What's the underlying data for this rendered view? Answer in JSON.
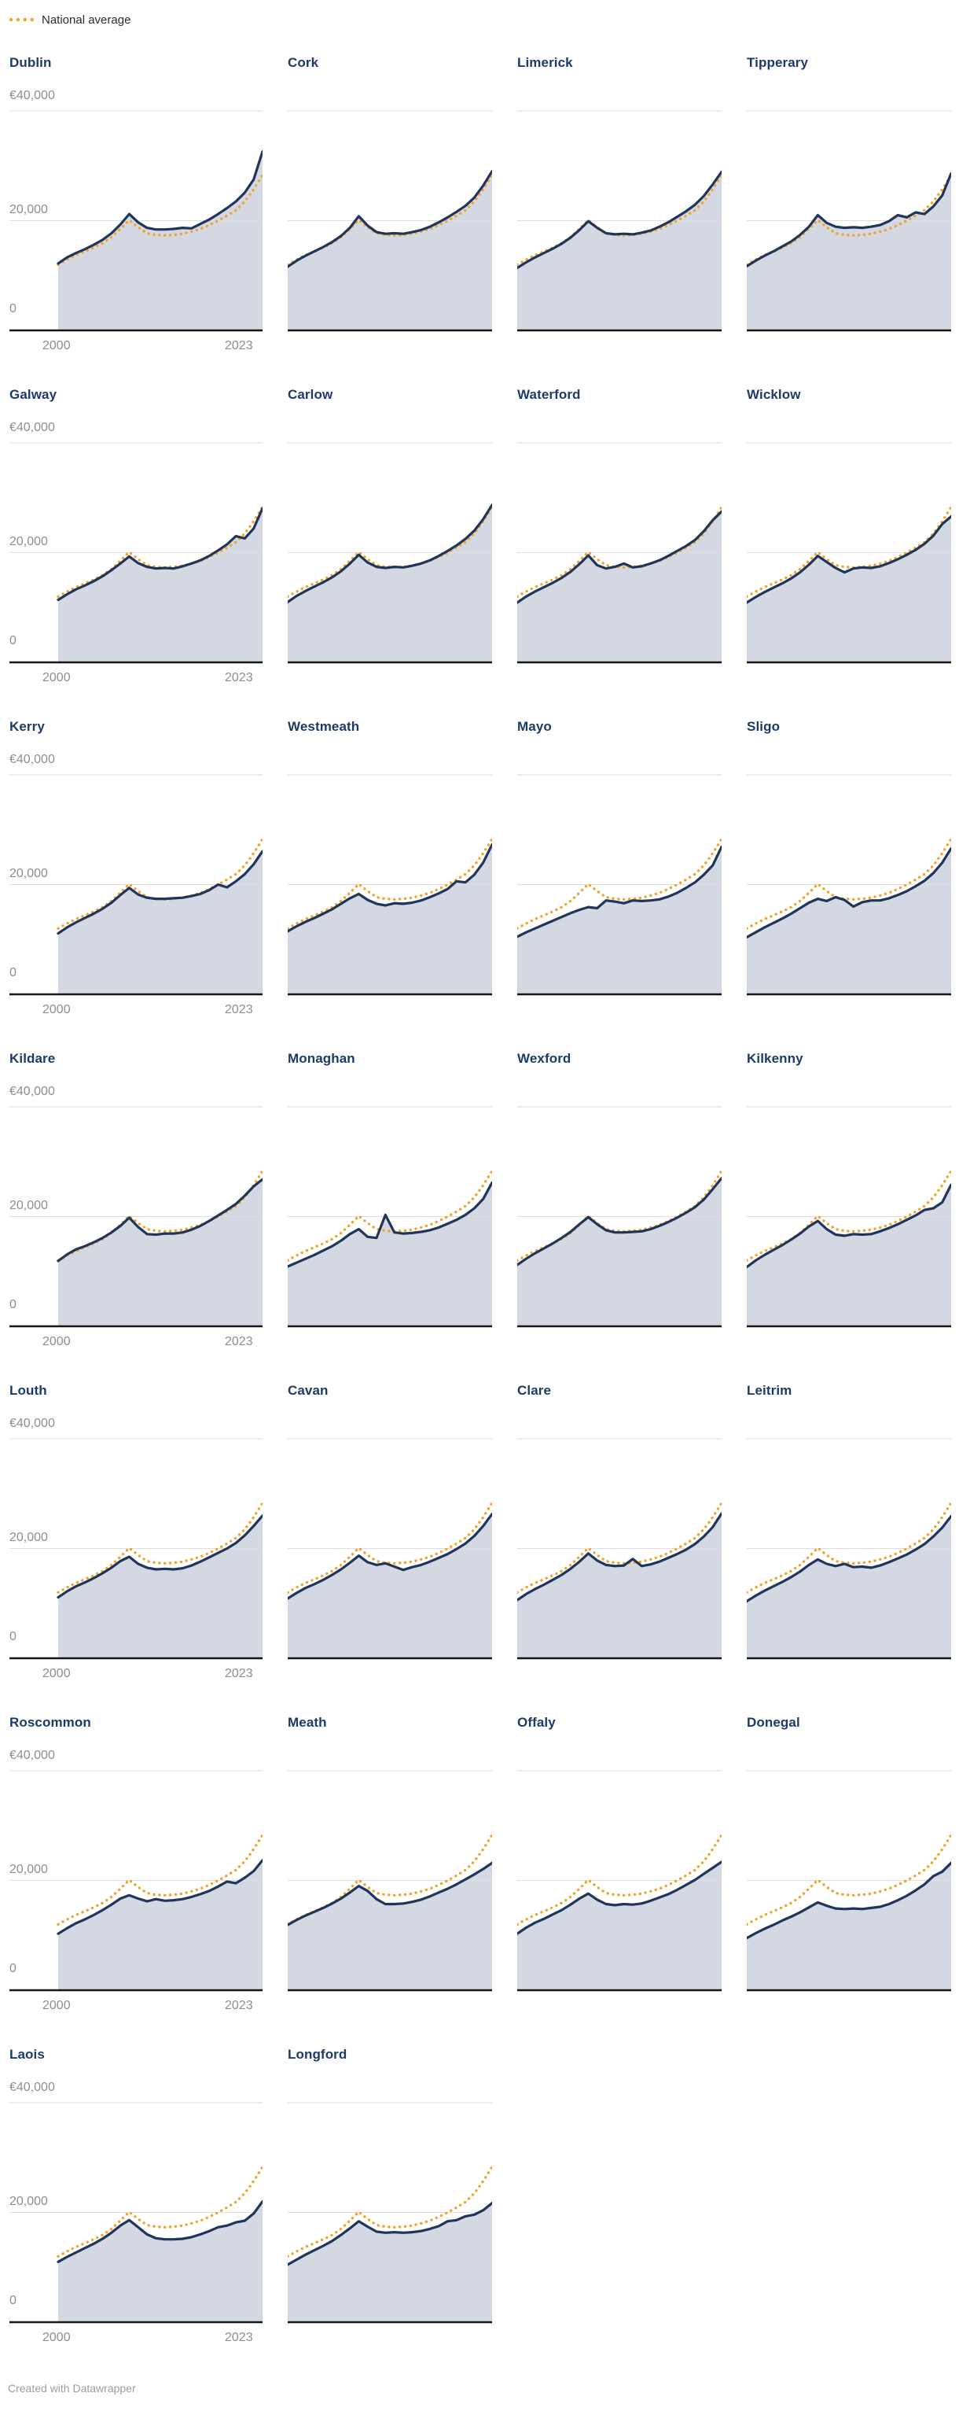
{
  "legend": {
    "label": "National average"
  },
  "axis": {
    "y_top_label": "€40,000",
    "y_mid_label": "20,000",
    "y_zero_label": "0",
    "x_first_label": "2000",
    "x_last_label": "2023"
  },
  "footer": {
    "credit": "Created with Datawrapper"
  },
  "colors": {
    "county_line": "#1f3559",
    "national_average_line": "#efa42b",
    "area_fill": "#d4d8e2",
    "gridline": "#dedede",
    "baseline": "#161616",
    "title_text": "#1d3a68",
    "axis_text": "#8e8e8e",
    "legend_text": "#2b2b2b",
    "credit_text": "#9e9e9e"
  },
  "chart_data": {
    "type": "area",
    "title": "",
    "ylabel": "€",
    "ylim": [
      0,
      40000
    ],
    "y_gridlines": [
      0,
      20000,
      40000
    ],
    "x": [
      2000,
      2001,
      2002,
      2003,
      2004,
      2005,
      2006,
      2007,
      2008,
      2009,
      2010,
      2011,
      2012,
      2013,
      2014,
      2015,
      2016,
      2017,
      2018,
      2019,
      2020,
      2021,
      2022,
      2023
    ],
    "legend_position": "top-left",
    "national_average": [
      12000,
      12900,
      13700,
      14400,
      15100,
      15900,
      17000,
      18500,
      20100,
      18800,
      17700,
      17400,
      17300,
      17400,
      17600,
      18000,
      18500,
      19200,
      20000,
      20900,
      21900,
      23500,
      25700,
      28300
    ],
    "series": [
      {
        "name": "Dublin",
        "values": [
          12200,
          13300,
          14100,
          14800,
          15600,
          16500,
          17700,
          19300,
          21200,
          19700,
          18700,
          18400,
          18400,
          18500,
          18700,
          18600,
          19400,
          20200,
          21200,
          22300,
          23500,
          25100,
          27500,
          32600
        ]
      },
      {
        "name": "Cork",
        "values": [
          11600,
          12700,
          13600,
          14400,
          15200,
          16100,
          17200,
          18700,
          20800,
          19100,
          17900,
          17600,
          17700,
          17600,
          17900,
          18300,
          18900,
          19700,
          20600,
          21600,
          22700,
          24200,
          26400,
          29000
        ]
      },
      {
        "name": "Limerick",
        "values": [
          11400,
          12400,
          13300,
          14100,
          14900,
          15800,
          16900,
          18300,
          19900,
          18700,
          17700,
          17500,
          17600,
          17500,
          17800,
          18200,
          18900,
          19700,
          20700,
          21700,
          22900,
          24500,
          26600,
          28900
        ]
      },
      {
        "name": "Tipperary",
        "values": [
          11700,
          12700,
          13600,
          14400,
          15300,
          16200,
          17400,
          18900,
          21000,
          19600,
          18900,
          18700,
          18800,
          18700,
          18900,
          19200,
          19900,
          21000,
          20600,
          21500,
          21200,
          22600,
          24600,
          28600
        ]
      },
      {
        "name": "Galway",
        "values": [
          11400,
          12400,
          13300,
          14000,
          14800,
          15700,
          16800,
          18000,
          19300,
          18100,
          17400,
          17100,
          17200,
          17100,
          17500,
          18000,
          18600,
          19400,
          20400,
          21500,
          23000,
          22600,
          24400,
          28100
        ]
      },
      {
        "name": "Carlow",
        "values": [
          11000,
          12100,
          13000,
          13800,
          14600,
          15500,
          16600,
          18000,
          19600,
          18200,
          17400,
          17200,
          17400,
          17300,
          17600,
          18000,
          18600,
          19400,
          20300,
          21300,
          22500,
          24000,
          26100,
          28700
        ]
      },
      {
        "name": "Waterford",
        "values": [
          10900,
          12000,
          12900,
          13700,
          14500,
          15400,
          16500,
          17900,
          19500,
          17700,
          17100,
          17400,
          18000,
          17300,
          17500,
          18000,
          18600,
          19400,
          20300,
          21200,
          22300,
          23900,
          25900,
          27500
        ]
      },
      {
        "name": "Wicklow",
        "values": [
          10900,
          11900,
          12800,
          13600,
          14400,
          15300,
          16400,
          17800,
          19400,
          18300,
          17200,
          16400,
          17100,
          17300,
          17200,
          17500,
          18100,
          18800,
          19600,
          20500,
          21600,
          23100,
          25200,
          26600
        ]
      },
      {
        "name": "Kerry",
        "values": [
          11100,
          12200,
          13100,
          13900,
          14700,
          15600,
          16700,
          18100,
          19400,
          18200,
          17600,
          17400,
          17400,
          17500,
          17600,
          17900,
          18300,
          19000,
          20000,
          19500,
          20600,
          21900,
          23700,
          26100
        ]
      },
      {
        "name": "Westmeath",
        "values": [
          11500,
          12400,
          13200,
          13900,
          14700,
          15500,
          16500,
          17500,
          18300,
          17200,
          16500,
          16200,
          16600,
          16500,
          16700,
          17100,
          17700,
          18400,
          19200,
          20600,
          20400,
          21800,
          24000,
          27300
        ]
      },
      {
        "name": "Mayo",
        "values": [
          10500,
          11300,
          12000,
          12700,
          13400,
          14100,
          14800,
          15400,
          15900,
          15700,
          17100,
          16900,
          16600,
          17100,
          17000,
          17100,
          17300,
          17800,
          18500,
          19400,
          20400,
          21800,
          23500,
          26900
        ]
      },
      {
        "name": "Sligo",
        "values": [
          10400,
          11300,
          12200,
          13000,
          13800,
          14700,
          15700,
          16700,
          17400,
          17000,
          17700,
          17200,
          16000,
          16800,
          17100,
          17100,
          17500,
          18100,
          18800,
          19700,
          20700,
          22100,
          24000,
          26600
        ]
      },
      {
        "name": "Kildare",
        "values": [
          11900,
          13100,
          14000,
          14600,
          15300,
          16100,
          17100,
          18300,
          19800,
          18100,
          16800,
          16700,
          16900,
          16900,
          17100,
          17600,
          18300,
          19200,
          20200,
          21200,
          22300,
          23800,
          25500,
          26800
        ]
      },
      {
        "name": "Monaghan",
        "values": [
          10900,
          11600,
          12300,
          13000,
          13800,
          14600,
          15600,
          16800,
          17700,
          16300,
          16100,
          20300,
          17100,
          16900,
          17000,
          17200,
          17500,
          18000,
          18700,
          19400,
          20300,
          21500,
          23200,
          26200
        ]
      },
      {
        "name": "Wexford",
        "values": [
          11200,
          12300,
          13300,
          14200,
          15100,
          16100,
          17200,
          18600,
          19900,
          18600,
          17500,
          17100,
          17100,
          17200,
          17300,
          17700,
          18300,
          19000,
          19800,
          20700,
          21700,
          23100,
          25000,
          27000
        ]
      },
      {
        "name": "Kilkenny",
        "values": [
          10800,
          12000,
          13000,
          13900,
          14800,
          15800,
          16900,
          18200,
          19200,
          17700,
          16700,
          16500,
          16800,
          16700,
          16800,
          17300,
          17900,
          18600,
          19400,
          20200,
          21200,
          21500,
          22600,
          25800
        ]
      },
      {
        "name": "Louth",
        "values": [
          11100,
          12200,
          13100,
          13800,
          14600,
          15500,
          16500,
          17700,
          18500,
          17200,
          16500,
          16200,
          16300,
          16200,
          16400,
          16900,
          17600,
          18400,
          19200,
          20000,
          21000,
          22400,
          24100,
          26000
        ]
      },
      {
        "name": "Cavan",
        "values": [
          10900,
          11900,
          12800,
          13500,
          14300,
          15200,
          16200,
          17400,
          18700,
          17500,
          17000,
          17300,
          16700,
          16100,
          16600,
          17000,
          17600,
          18300,
          19000,
          19900,
          20900,
          22300,
          24100,
          26300
        ]
      },
      {
        "name": "Clare",
        "values": [
          10600,
          11700,
          12600,
          13400,
          14300,
          15200,
          16300,
          17600,
          19100,
          17800,
          17000,
          16800,
          16900,
          18100,
          16800,
          17100,
          17600,
          18300,
          19000,
          19800,
          20800,
          22200,
          23900,
          26400
        ]
      },
      {
        "name": "Leitrim",
        "values": [
          10400,
          11400,
          12300,
          13100,
          13900,
          14800,
          15800,
          17000,
          18000,
          17200,
          16800,
          17200,
          16600,
          16700,
          16500,
          16900,
          17500,
          18200,
          18900,
          19800,
          20800,
          22200,
          23800,
          25900
        ]
      },
      {
        "name": "Roscommon",
        "values": [
          10300,
          11300,
          12200,
          12900,
          13700,
          14600,
          15600,
          16700,
          17300,
          16700,
          16200,
          16600,
          16300,
          16400,
          16600,
          17000,
          17500,
          18100,
          18900,
          19800,
          19500,
          20500,
          21700,
          23700
        ]
      },
      {
        "name": "Meath",
        "values": [
          11900,
          12800,
          13600,
          14300,
          15000,
          15800,
          16700,
          17800,
          19000,
          18100,
          16600,
          15700,
          15700,
          15800,
          16100,
          16500,
          17100,
          17800,
          18500,
          19300,
          20200,
          21100,
          22100,
          23200
        ]
      },
      {
        "name": "Offaly",
        "values": [
          10300,
          11400,
          12300,
          13000,
          13800,
          14600,
          15600,
          16700,
          17600,
          16500,
          15700,
          15500,
          15700,
          15600,
          15800,
          16300,
          16900,
          17500,
          18300,
          19200,
          20100,
          21200,
          22300,
          23400
        ]
      },
      {
        "name": "Donegal",
        "values": [
          9500,
          10400,
          11200,
          11900,
          12700,
          13400,
          14200,
          15100,
          16000,
          15400,
          14900,
          14800,
          14900,
          14800,
          15000,
          15200,
          15700,
          16400,
          17200,
          18200,
          19300,
          20800,
          21600,
          23200
        ]
      },
      {
        "name": "Laois",
        "values": [
          11000,
          11900,
          12700,
          13500,
          14300,
          15200,
          16300,
          17600,
          18600,
          17300,
          16000,
          15300,
          15100,
          15100,
          15200,
          15500,
          16000,
          16600,
          17300,
          17600,
          18200,
          18500,
          19800,
          22000
        ]
      },
      {
        "name": "Longford",
        "values": [
          10500,
          11400,
          12300,
          13100,
          13900,
          14800,
          15900,
          17100,
          18400,
          17400,
          16500,
          16300,
          16400,
          16300,
          16400,
          16600,
          17000,
          17500,
          18400,
          18600,
          19300,
          19600,
          20400,
          21700
        ]
      }
    ]
  }
}
